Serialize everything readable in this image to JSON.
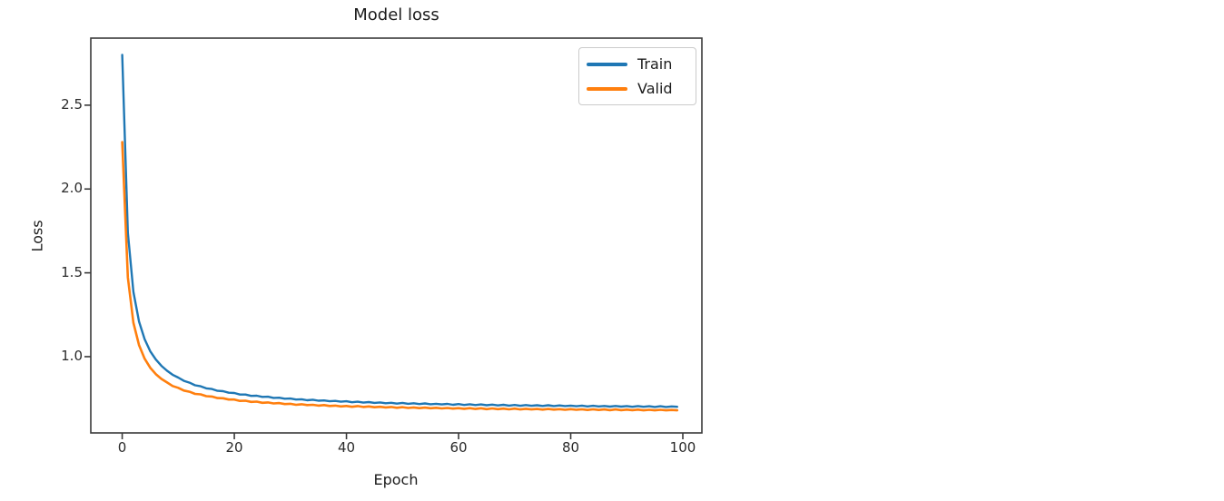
{
  "page": {
    "background": "#ffffff"
  },
  "chart_data": {
    "type": "line",
    "title": "Model loss",
    "xlabel": "Epoch",
    "ylabel": "Loss",
    "xlim": [
      -5.6,
      103.4
    ],
    "ylim": [
      0.545,
      2.9
    ],
    "xticks": [
      0,
      20,
      40,
      60,
      80,
      100
    ],
    "xtick_labels": [
      "0",
      "20",
      "40",
      "60",
      "80",
      "100"
    ],
    "yticks": [
      1.0,
      1.5,
      2.0,
      2.5
    ],
    "ytick_labels": [
      "1.0",
      "1.5",
      "2.0",
      "2.5"
    ],
    "grid": false,
    "axis_color": "#3a3a3a",
    "tick_label_color": "#2a2a2a",
    "legend": {
      "location": "upper right",
      "entries": [
        "Train",
        "Valid"
      ]
    },
    "x": [
      0,
      1,
      2,
      3,
      4,
      5,
      6,
      7,
      8,
      9,
      10,
      11,
      12,
      13,
      14,
      15,
      16,
      17,
      18,
      19,
      20,
      21,
      22,
      23,
      24,
      25,
      26,
      27,
      28,
      29,
      30,
      31,
      32,
      33,
      34,
      35,
      36,
      37,
      38,
      39,
      40,
      41,
      42,
      43,
      44,
      45,
      46,
      47,
      48,
      49,
      50,
      51,
      52,
      53,
      54,
      55,
      56,
      57,
      58,
      59,
      60,
      61,
      62,
      63,
      64,
      65,
      66,
      67,
      68,
      69,
      70,
      71,
      72,
      73,
      74,
      75,
      76,
      77,
      78,
      79,
      80,
      81,
      82,
      83,
      84,
      85,
      86,
      87,
      88,
      89,
      90,
      91,
      92,
      93,
      94,
      95,
      96,
      97,
      98,
      99
    ],
    "series": [
      {
        "name": "Train",
        "color": "#1f77b4",
        "line_width": 2.4,
        "values": [
          2.8,
          1.74,
          1.387,
          1.21,
          1.104,
          1.033,
          0.983,
          0.945,
          0.916,
          0.892,
          0.875,
          0.856,
          0.845,
          0.829,
          0.823,
          0.811,
          0.807,
          0.796,
          0.794,
          0.785,
          0.783,
          0.774,
          0.774,
          0.766,
          0.767,
          0.76,
          0.761,
          0.754,
          0.755,
          0.749,
          0.75,
          0.744,
          0.746,
          0.74,
          0.743,
          0.737,
          0.739,
          0.734,
          0.736,
          0.731,
          0.734,
          0.728,
          0.731,
          0.726,
          0.729,
          0.724,
          0.727,
          0.722,
          0.725,
          0.72,
          0.724,
          0.719,
          0.722,
          0.717,
          0.721,
          0.716,
          0.719,
          0.715,
          0.718,
          0.713,
          0.717,
          0.712,
          0.716,
          0.711,
          0.715,
          0.71,
          0.714,
          0.709,
          0.713,
          0.708,
          0.712,
          0.707,
          0.711,
          0.707,
          0.71,
          0.706,
          0.71,
          0.705,
          0.709,
          0.705,
          0.708,
          0.704,
          0.708,
          0.703,
          0.707,
          0.703,
          0.706,
          0.702,
          0.706,
          0.702,
          0.705,
          0.701,
          0.705,
          0.701,
          0.704,
          0.7,
          0.704,
          0.7,
          0.703,
          0.701
        ]
      },
      {
        "name": "Valid",
        "color": "#ff7f0e",
        "line_width": 2.6,
        "values": [
          2.28,
          1.473,
          1.203,
          1.069,
          0.988,
          0.934,
          0.896,
          0.867,
          0.846,
          0.825,
          0.814,
          0.798,
          0.791,
          0.778,
          0.775,
          0.764,
          0.762,
          0.753,
          0.752,
          0.744,
          0.744,
          0.736,
          0.737,
          0.73,
          0.732,
          0.725,
          0.727,
          0.721,
          0.723,
          0.717,
          0.719,
          0.713,
          0.716,
          0.711,
          0.713,
          0.708,
          0.711,
          0.706,
          0.708,
          0.703,
          0.706,
          0.701,
          0.705,
          0.7,
          0.703,
          0.698,
          0.701,
          0.697,
          0.7,
          0.695,
          0.699,
          0.694,
          0.697,
          0.693,
          0.696,
          0.692,
          0.695,
          0.691,
          0.694,
          0.69,
          0.693,
          0.689,
          0.693,
          0.688,
          0.692,
          0.687,
          0.691,
          0.687,
          0.69,
          0.686,
          0.69,
          0.685,
          0.689,
          0.685,
          0.688,
          0.684,
          0.688,
          0.684,
          0.687,
          0.683,
          0.687,
          0.683,
          0.686,
          0.682,
          0.686,
          0.682,
          0.685,
          0.681,
          0.685,
          0.681,
          0.684,
          0.681,
          0.684,
          0.68,
          0.683,
          0.68,
          0.683,
          0.68,
          0.682,
          0.68
        ]
      }
    ]
  }
}
